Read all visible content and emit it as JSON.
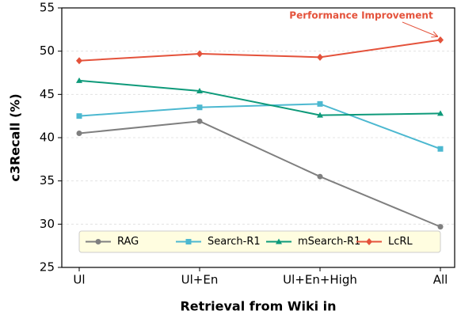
{
  "chart_data": {
    "type": "line",
    "xlabel": "Retrieval from Wiki in",
    "ylabel": "c3Recall (%)",
    "categories": [
      "Ul",
      "Ul+En",
      "Ul+En+High",
      "All"
    ],
    "series": [
      {
        "name": "RAG",
        "color": "#7f7f7f",
        "marker": "circle",
        "values": [
          40.5,
          41.9,
          35.5,
          29.7
        ]
      },
      {
        "name": "Search-R1",
        "color": "#4cb8d0",
        "marker": "square",
        "values": [
          42.5,
          43.5,
          43.9,
          38.7
        ]
      },
      {
        "name": "mSearch-R1",
        "color": "#0e9a7a",
        "marker": "triangle",
        "values": [
          46.6,
          45.4,
          42.6,
          42.8
        ]
      },
      {
        "name": "LcRL",
        "color": "#e4523b",
        "marker": "diamond",
        "values": [
          48.9,
          49.7,
          49.3,
          51.3
        ]
      }
    ],
    "ylim": [
      25,
      55
    ],
    "yticks": [
      25,
      30,
      35,
      40,
      45,
      50,
      55
    ],
    "grid": true,
    "legend": "lower center",
    "annotation": "Performance Improvement"
  }
}
